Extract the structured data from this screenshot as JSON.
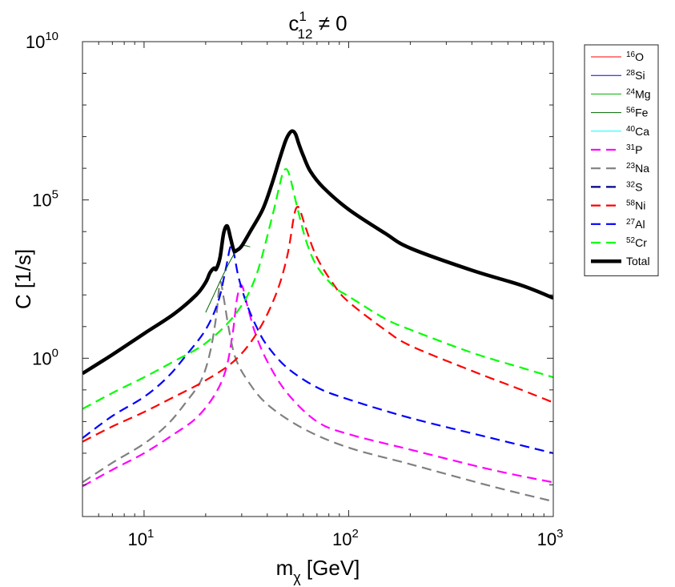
{
  "chart_data": {
    "type": "line",
    "title": {
      "base": "c",
      "sup": "1",
      "sub": "12",
      "rest": " ≠ 0"
    },
    "xlabel": {
      "base": "m",
      "sub": "χ",
      "rest": " [GeV]"
    },
    "ylabel": "C [1/s]",
    "xscale": "log",
    "yscale": "log",
    "xlim": [
      5,
      1000
    ],
    "ylim": [
      1e-05,
      10000000000
    ],
    "xticks": [
      {
        "base": "10",
        "exp": "1"
      },
      {
        "base": "10",
        "exp": "2"
      },
      {
        "base": "10",
        "exp": "3"
      }
    ],
    "yticks": [
      {
        "base": "10",
        "exp": "0"
      },
      {
        "base": "10",
        "exp": "5"
      },
      {
        "base": "10",
        "exp": "10"
      }
    ],
    "legend_position": "outside-right",
    "series": [
      {
        "name": "O",
        "mass": "16",
        "color": "#ff0000",
        "style": "thin",
        "x": [],
        "y": []
      },
      {
        "name": "Si",
        "mass": "28",
        "color": "#0000ff",
        "style": "thin",
        "x": [],
        "y": []
      },
      {
        "name": "Mg",
        "mass": "24",
        "color": "#00b000",
        "style": "thin",
        "x": [],
        "y": []
      },
      {
        "name": "Fe",
        "mass": "56",
        "color": "#006400",
        "style": "thin",
        "x": [
          20,
          22,
          24,
          26,
          28,
          30,
          33
        ],
        "y": [
          28,
          105,
          350,
          1000,
          2300,
          3600,
          3300
        ]
      },
      {
        "name": "Ca",
        "mass": "40",
        "color": "#00ffff",
        "style": "thin",
        "x": [],
        "y": []
      },
      {
        "name": "P",
        "mass": "31",
        "color": "#ff00ff",
        "style": "dashed",
        "x": [
          5,
          7,
          10,
          14,
          18,
          22,
          25,
          27,
          28.5,
          30,
          32,
          35,
          40,
          50,
          70,
          100,
          200,
          500,
          1000
        ],
        "y": [
          9e-05,
          0.0003,
          0.001,
          0.004,
          0.013,
          0.065,
          0.4,
          5,
          80,
          200,
          45,
          6,
          0.8,
          0.08,
          0.01,
          0.004,
          0.0013,
          0.0003,
          0.00012
        ]
      },
      {
        "name": "Na",
        "mass": "23",
        "color": "#808080",
        "style": "dashed",
        "x": [
          5,
          7,
          10,
          13,
          16,
          19,
          21,
          22.5,
          23.5,
          24.5,
          26,
          28,
          32,
          40,
          60,
          100,
          200,
          500,
          1000
        ],
        "y": [
          0.00012,
          0.0005,
          0.002,
          0.008,
          0.04,
          0.2,
          1.5,
          20,
          250,
          80,
          8,
          1,
          0.2,
          0.035,
          0.006,
          0.0015,
          0.00045,
          9e-05,
          3e-05
        ]
      },
      {
        "name": "S",
        "mass": "32",
        "color": "#00008b",
        "style": "dashed",
        "x": [],
        "y": []
      },
      {
        "name": "Ni",
        "mass": "58",
        "color": "#ff0000",
        "style": "dashed",
        "x": [
          5,
          7,
          10,
          14,
          20,
          28,
          36,
          44,
          50,
          54,
          56,
          58,
          62,
          70,
          85,
          100,
          150,
          200,
          400,
          700,
          1000
        ],
        "y": [
          0.0023,
          0.007,
          0.02,
          0.06,
          0.2,
          0.9,
          7,
          100,
          1600,
          30000,
          60000,
          45000,
          12000,
          1500,
          200,
          60,
          8,
          2.5,
          0.4,
          0.1,
          0.04
        ]
      },
      {
        "name": "Al",
        "mass": "27",
        "color": "#0000ff",
        "style": "dashed",
        "x": [
          5,
          7,
          10,
          13,
          16,
          20,
          23,
          25,
          26.5,
          27.5,
          29,
          32,
          36,
          40,
          50,
          70,
          100,
          200,
          500,
          1000
        ],
        "y": [
          0.003,
          0.015,
          0.06,
          0.25,
          1.2,
          8,
          60,
          600,
          3500,
          2000,
          350,
          45,
          8,
          2.5,
          0.5,
          0.12,
          0.05,
          0.013,
          0.003,
          0.001
        ]
      },
      {
        "name": "Cr",
        "mass": "52",
        "color": "#00ff00",
        "style": "dashed",
        "x": [
          5,
          7,
          10,
          14,
          20,
          28,
          35,
          42,
          46,
          48,
          50,
          52,
          56,
          62,
          70,
          85,
          100,
          150,
          200,
          400,
          700,
          1000
        ],
        "y": [
          0.025,
          0.08,
          0.25,
          0.8,
          3,
          25,
          350,
          25000,
          300000,
          800000,
          900000,
          450000,
          60000,
          5000,
          800,
          180,
          90,
          18,
          8,
          1.5,
          0.5,
          0.25
        ]
      },
      {
        "name": "Total",
        "mass": "",
        "color": "#000000",
        "style": "thick",
        "x": [
          5,
          7,
          10,
          14,
          18,
          20,
          21,
          22,
          22.5,
          23.5,
          24.5,
          25.5,
          26.5,
          27.5,
          28.5,
          30,
          33,
          38,
          42,
          46,
          49,
          51,
          53,
          55,
          57,
          60,
          65,
          75,
          100,
          150,
          200,
          400,
          700,
          1000
        ],
        "y": [
          0.33,
          1.3,
          6,
          25,
          100,
          250,
          500,
          700,
          650,
          1500,
          9000,
          15000,
          6000,
          2500,
          2600,
          3500,
          10000,
          50000,
          300000,
          2000000,
          7000000,
          12000000,
          15000000,
          12000000,
          6000000,
          2500000,
          800000,
          250000,
          50000,
          9000,
          3000,
          600,
          200,
          80
        ]
      }
    ]
  }
}
